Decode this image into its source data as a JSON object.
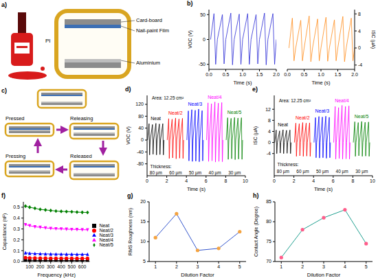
{
  "chart_data": [
    {
      "panel": "b)",
      "type": "line",
      "x_label": "Time (s)",
      "y_label": "VOC (V)",
      "xlim": [
        0,
        2
      ],
      "xticks": [
        {
          "value": 0,
          "label": "0.0"
        },
        0.5,
        {
          "value": 1,
          "label": "1.0"
        },
        1.5,
        {
          "value": 2,
          "label": "2.0"
        }
      ],
      "ylim": [
        -60,
        60
      ],
      "yticks": [
        -50,
        0,
        50
      ],
      "x": [
        0.05,
        0.15,
        0.2,
        0.25,
        0.4,
        0.45,
        0.5,
        0.65,
        0.7,
        0.75,
        0.9,
        0.95,
        1.0,
        1.15,
        1.2,
        1.25,
        1.4,
        1.45,
        1.5,
        1.65,
        1.7,
        1.75,
        1.9,
        1.95,
        2
      ],
      "series": [
        {
          "color": "#2b2bd6",
          "values": [
            0,
            52,
            -50,
            0,
            50,
            -49,
            0,
            53,
            -51,
            0,
            51,
            -50,
            0,
            52,
            -50,
            0,
            50,
            -49,
            0,
            53,
            -51,
            0,
            52,
            -50,
            0
          ]
        }
      ]
    },
    {
      "type": "line",
      "x_label": "Time (s)",
      "y_label": "ISC (µA)",
      "xlim": [
        0,
        2
      ],
      "xticks": [
        {
          "value": 0,
          "label": "0.0"
        },
        0.5,
        {
          "value": 1,
          "label": "1.0"
        },
        1.5,
        {
          "value": 2,
          "label": "2.0"
        }
      ],
      "ylim": [
        -5,
        9
      ],
      "yticks": [
        -4,
        0,
        4,
        8
      ],
      "x": [
        0.05,
        0.15,
        0.2,
        0.25,
        0.4,
        0.45,
        0.5,
        0.65,
        0.7,
        0.75,
        0.9,
        0.95,
        1.0,
        1.15,
        1.2,
        1.25,
        1.4,
        1.45,
        1.5,
        1.65,
        1.7,
        1.75,
        1.9,
        1.95,
        2
      ],
      "series": [
        {
          "color": "#ff8c1a",
          "values": [
            0,
            7,
            -3,
            0,
            6.5,
            -3,
            0,
            7.5,
            -3.2,
            0,
            6.8,
            -3,
            0,
            7.2,
            -3.1,
            0,
            6.6,
            -3,
            0,
            7.4,
            -3.2,
            0,
            7,
            -3,
            0
          ]
        }
      ]
    },
    {
      "panel": "d)",
      "type": "line",
      "x_label": "Time (s)",
      "y_label": "VOC (V)",
      "xlim": [
        0,
        10
      ],
      "xticks": [
        0,
        2,
        4,
        6,
        8,
        10
      ],
      "ylim": [
        -120,
        150
      ],
      "yticks": [
        -80,
        -40,
        0,
        40,
        80,
        120
      ],
      "annotations": [
        {
          "text": "Area: 12.25 cm²",
          "x": 2.1,
          "y": 142
        },
        {
          "text": "Thickness:",
          "x": 1.4,
          "y": -90
        },
        {
          "text": "80 µm",
          "x": 0.9,
          "y": -110
        },
        {
          "text": "60 µm",
          "x": 2.9,
          "y": -110
        },
        {
          "text": "50 µm",
          "x": 4.9,
          "y": -110
        },
        {
          "text": "40 µm",
          "x": 6.9,
          "y": -110
        },
        {
          "text": "30 µm",
          "x": 8.9,
          "y": -110
        }
      ],
      "series": [
        {
          "name": "Neat",
          "color": "#000000",
          "x": [
            0.05,
            0.2,
            0.26,
            0.32,
            0.55,
            0.61,
            0.67,
            0.9,
            0.96,
            1.02,
            1.25,
            1.31,
            1.37,
            1.6,
            1.66,
            1.72
          ],
          "values": [
            0,
            55,
            -50,
            0,
            52,
            -48,
            0,
            56,
            -50,
            0,
            54,
            -49,
            0,
            55,
            -50,
            0
          ]
        },
        {
          "name": "Neat/2",
          "color": "#ff0000",
          "x": [
            2.05,
            2.2,
            2.26,
            2.32,
            2.55,
            2.61,
            2.67,
            2.9,
            2.96,
            3.02,
            3.25,
            3.31,
            3.37,
            3.6,
            3.66,
            3.72
          ],
          "values": [
            0,
            72,
            -62,
            0,
            70,
            -60,
            0,
            74,
            -63,
            0,
            71,
            -61,
            0,
            73,
            -62,
            0
          ]
        },
        {
          "name": "Neat/3",
          "color": "#0000ff",
          "x": [
            4.05,
            4.2,
            4.26,
            4.32,
            4.55,
            4.61,
            4.67,
            4.9,
            4.96,
            5.02,
            5.25,
            5.31,
            5.37,
            5.6,
            5.66,
            5.72
          ],
          "values": [
            0,
            98,
            -70,
            0,
            102,
            -72,
            0,
            100,
            -71,
            0,
            104,
            -73,
            0,
            99,
            -70,
            0
          ]
        },
        {
          "name": "Neat/4",
          "color": "#ff00ff",
          "x": [
            6.05,
            6.2,
            6.26,
            6.32,
            6.55,
            6.61,
            6.67,
            6.9,
            6.96,
            7.02,
            7.25,
            7.31,
            7.37,
            7.6,
            7.66,
            7.72
          ],
          "values": [
            0,
            125,
            -72,
            0,
            122,
            -70,
            0,
            128,
            -74,
            0,
            124,
            -72,
            0,
            126,
            -73,
            0
          ]
        },
        {
          "name": "Neat/5",
          "color": "#008000",
          "x": [
            8.05,
            8.2,
            8.26,
            8.32,
            8.55,
            8.61,
            8.67,
            8.9,
            8.96,
            9.02,
            9.25,
            9.31,
            9.37,
            9.6,
            9.66,
            9.72
          ],
          "values": [
            0,
            75,
            -65,
            0,
            73,
            -63,
            0,
            76,
            -66,
            0,
            74,
            -64,
            0,
            75,
            -65,
            0
          ]
        }
      ]
    },
    {
      "panel": "e)",
      "type": "line",
      "x_label": "Time (s)",
      "y_label": "ISC (µA)",
      "xlim": [
        0,
        10
      ],
      "xticks": [
        0,
        2,
        4,
        6,
        8,
        10
      ],
      "ylim": [
        -12,
        17
      ],
      "yticks": [
        -4,
        0,
        4,
        8,
        12
      ],
      "annotations": [
        {
          "text": "Area: 12.25 cm²",
          "x": 2.1,
          "y": 15
        },
        {
          "text": "Thickness:",
          "x": 1.4,
          "y": -8
        },
        {
          "text": "80 µm",
          "x": 0.9,
          "y": -10.5
        },
        {
          "text": "60 µm",
          "x": 2.9,
          "y": -10.5
        },
        {
          "text": "50 µm",
          "x": 4.9,
          "y": -10.5
        },
        {
          "text": "40 µm",
          "x": 6.9,
          "y": -10.5
        },
        {
          "text": "30 µm",
          "x": 8.9,
          "y": -10.5
        }
      ],
      "series": [
        {
          "name": "Neat",
          "color": "#000000",
          "x": [
            0.05,
            0.2,
            0.26,
            0.32,
            0.55,
            0.61,
            0.67,
            0.9,
            0.96,
            1.02,
            1.25,
            1.31,
            1.37,
            1.6,
            1.66,
            1.72
          ],
          "values": [
            0,
            4.5,
            -4,
            0,
            4.2,
            -3.8,
            0,
            4.6,
            -4,
            0,
            4.4,
            -3.9,
            0,
            4.5,
            -4,
            0
          ]
        },
        {
          "name": "Neat/2",
          "color": "#ff0000",
          "x": [
            2.05,
            2.2,
            2.26,
            2.32,
            2.55,
            2.61,
            2.67,
            2.9,
            2.96,
            3.02,
            3.25,
            3.31,
            3.37,
            3.6,
            3.66,
            3.72
          ],
          "values": [
            0,
            7,
            -5,
            0,
            6.8,
            -4.8,
            0,
            7.2,
            -5,
            0,
            7,
            -4.9,
            0,
            7.1,
            -5,
            0
          ]
        },
        {
          "name": "Neat/3",
          "color": "#0000ff",
          "x": [
            4.05,
            4.2,
            4.26,
            4.32,
            4.55,
            4.61,
            4.67,
            4.9,
            4.96,
            5.02,
            5.25,
            5.31,
            5.37,
            5.6,
            5.66,
            5.72
          ],
          "values": [
            0,
            9,
            -5.5,
            0,
            9.4,
            -5.6,
            0,
            9.2,
            -5.5,
            0,
            9.5,
            -5.7,
            0,
            9.1,
            -5.5,
            0
          ]
        },
        {
          "name": "Neat/4",
          "color": "#ff00ff",
          "x": [
            6.05,
            6.2,
            6.26,
            6.32,
            6.55,
            6.61,
            6.67,
            6.9,
            6.96,
            7.02,
            7.25,
            7.31,
            7.37,
            7.6,
            7.66,
            7.72
          ],
          "values": [
            0,
            13,
            -6,
            0,
            12.6,
            -5.8,
            0,
            13.4,
            -6,
            0,
            13,
            -5.9,
            0,
            13.2,
            -6,
            0
          ]
        },
        {
          "name": "Neat/5",
          "color": "#008000",
          "x": [
            8.05,
            8.2,
            8.26,
            8.32,
            8.55,
            8.61,
            8.67,
            8.9,
            8.96,
            9.02,
            9.25,
            9.31,
            9.37,
            9.6,
            9.66,
            9.72
          ],
          "values": [
            0,
            7.5,
            -5,
            0,
            7.2,
            -4.8,
            0,
            7.6,
            -5,
            0,
            7.3,
            -4.9,
            0,
            7.4,
            -5,
            0
          ]
        }
      ]
    },
    {
      "panel": "f)",
      "type": "line",
      "x_label": "Frequency (kHz)",
      "y_label": "Capacitance (nF)",
      "legend": "right",
      "xlim": [
        40,
        670
      ],
      "xticks": [
        100,
        200,
        300,
        400,
        500,
        600
      ],
      "ylim": [
        0,
        0.55
      ],
      "yticks": [
        {
          "value": 0,
          "label": "0.0"
        },
        0.1,
        0.2,
        0.3,
        0.4,
        0.5
      ],
      "x": [
        60,
        100,
        150,
        200,
        250,
        300,
        350,
        400,
        450,
        500,
        550,
        600,
        650
      ],
      "series": [
        {
          "name": "Neat",
          "color": "#000000",
          "marker": "square",
          "values": [
            0.012,
            0.011,
            0.011,
            0.01,
            0.01,
            0.01,
            0.01,
            0.01,
            0.01,
            0.01,
            0.01,
            0.01,
            0.01
          ]
        },
        {
          "name": "Neat/2",
          "color": "#ff0000",
          "marker": "circle",
          "values": [
            0.035,
            0.033,
            0.032,
            0.031,
            0.031,
            0.03,
            0.03,
            0.03,
            0.03,
            0.03,
            0.029,
            0.029,
            0.029
          ]
        },
        {
          "name": "Neat/3",
          "color": "#0000ff",
          "marker": "triangle",
          "values": [
            0.08,
            0.075,
            0.073,
            0.071,
            0.07,
            0.069,
            0.068,
            0.068,
            0.067,
            0.067,
            0.066,
            0.066,
            0.066
          ]
        },
        {
          "name": "Neat/4",
          "color": "#ff00ff",
          "marker": "triangle-down",
          "values": [
            0.34,
            0.33,
            0.32,
            0.315,
            0.31,
            0.305,
            0.302,
            0.3,
            0.298,
            0.296,
            0.295,
            0.293,
            0.292
          ]
        },
        {
          "name": "Neat/5",
          "color": "#008000",
          "marker": "diamond",
          "values": [
            0.51,
            0.5,
            0.49,
            0.48,
            0.475,
            0.47,
            0.465,
            0.462,
            0.46,
            0.458,
            0.455,
            0.453,
            0.452
          ]
        }
      ]
    },
    {
      "panel": "g)",
      "type": "line",
      "x_label": "Dilution Factor",
      "y_label": "RMS Roughness (nm)",
      "xlim": [
        0.7,
        5.3
      ],
      "xticks": [
        1,
        2,
        3,
        4,
        5
      ],
      "ylim": [
        5,
        20
      ],
      "yticks": [
        5,
        10,
        15,
        20
      ],
      "x": [
        1,
        2,
        3,
        4,
        5
      ],
      "series": [
        {
          "color": "#3355cc",
          "marker": "circle",
          "colors": [
            "#f4a340",
            "#f4a340",
            "#f4a340",
            "#f4a340",
            "#f4a340"
          ],
          "values": [
            11,
            17,
            7.8,
            8.3,
            12.5
          ]
        }
      ]
    },
    {
      "panel": "h)",
      "type": "line",
      "x_label": "Dilution Factor",
      "y_label": "Contact Angle (Degree)",
      "xlim": [
        0.7,
        5.3
      ],
      "xticks": [
        1,
        2,
        3,
        4,
        5
      ],
      "ylim": [
        70,
        85
      ],
      "yticks": [
        70,
        75,
        80,
        85
      ],
      "x": [
        1,
        2,
        3,
        4,
        5
      ],
      "series": [
        {
          "color": "#20a090",
          "marker": "circle",
          "colors": [
            "#ff5c8a",
            "#ff5c8a",
            "#ff5c8a",
            "#ff5c8a",
            "#ff5c8a"
          ],
          "values": [
            71,
            78,
            81,
            83,
            74.5
          ]
        }
      ]
    }
  ],
  "diagrams": {
    "a": {
      "panel": "a)",
      "labels": {
        "pi": "PI",
        "top": "Card-board",
        "film": "Nail-paint Film",
        "bottom": "Aluminium"
      }
    },
    "c": {
      "panel": "c)",
      "states": [
        "Pressed",
        "Releasing",
        "Released",
        "Pressing"
      ]
    }
  }
}
